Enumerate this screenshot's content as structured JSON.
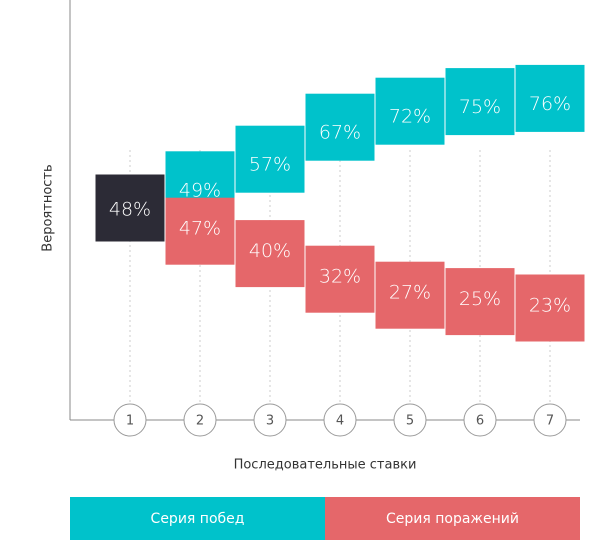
{
  "chart_data": {
    "type": "step",
    "y_label": "Вероятность",
    "x_label": "Последовательные ставки",
    "categories": [
      "1",
      "2",
      "3",
      "4",
      "5",
      "6",
      "7"
    ],
    "start_value": 48,
    "start_label": "48%",
    "start_color": "#2c2b36",
    "series": [
      {
        "name": "Серия побед",
        "color": "#00c2cb",
        "direction": "up",
        "values": [
          null,
          49,
          57,
          67,
          72,
          75,
          76
        ],
        "value_labels": [
          null,
          "49%",
          "57%",
          "67%",
          "72%",
          "75%",
          "76%"
        ]
      },
      {
        "name": "Серия поражений",
        "color": "#e5676a",
        "direction": "down",
        "values": [
          null,
          47,
          40,
          32,
          27,
          25,
          23
        ],
        "value_labels": [
          null,
          "47%",
          "40%",
          "32%",
          "27%",
          "25%",
          "23%"
        ]
      }
    ]
  }
}
